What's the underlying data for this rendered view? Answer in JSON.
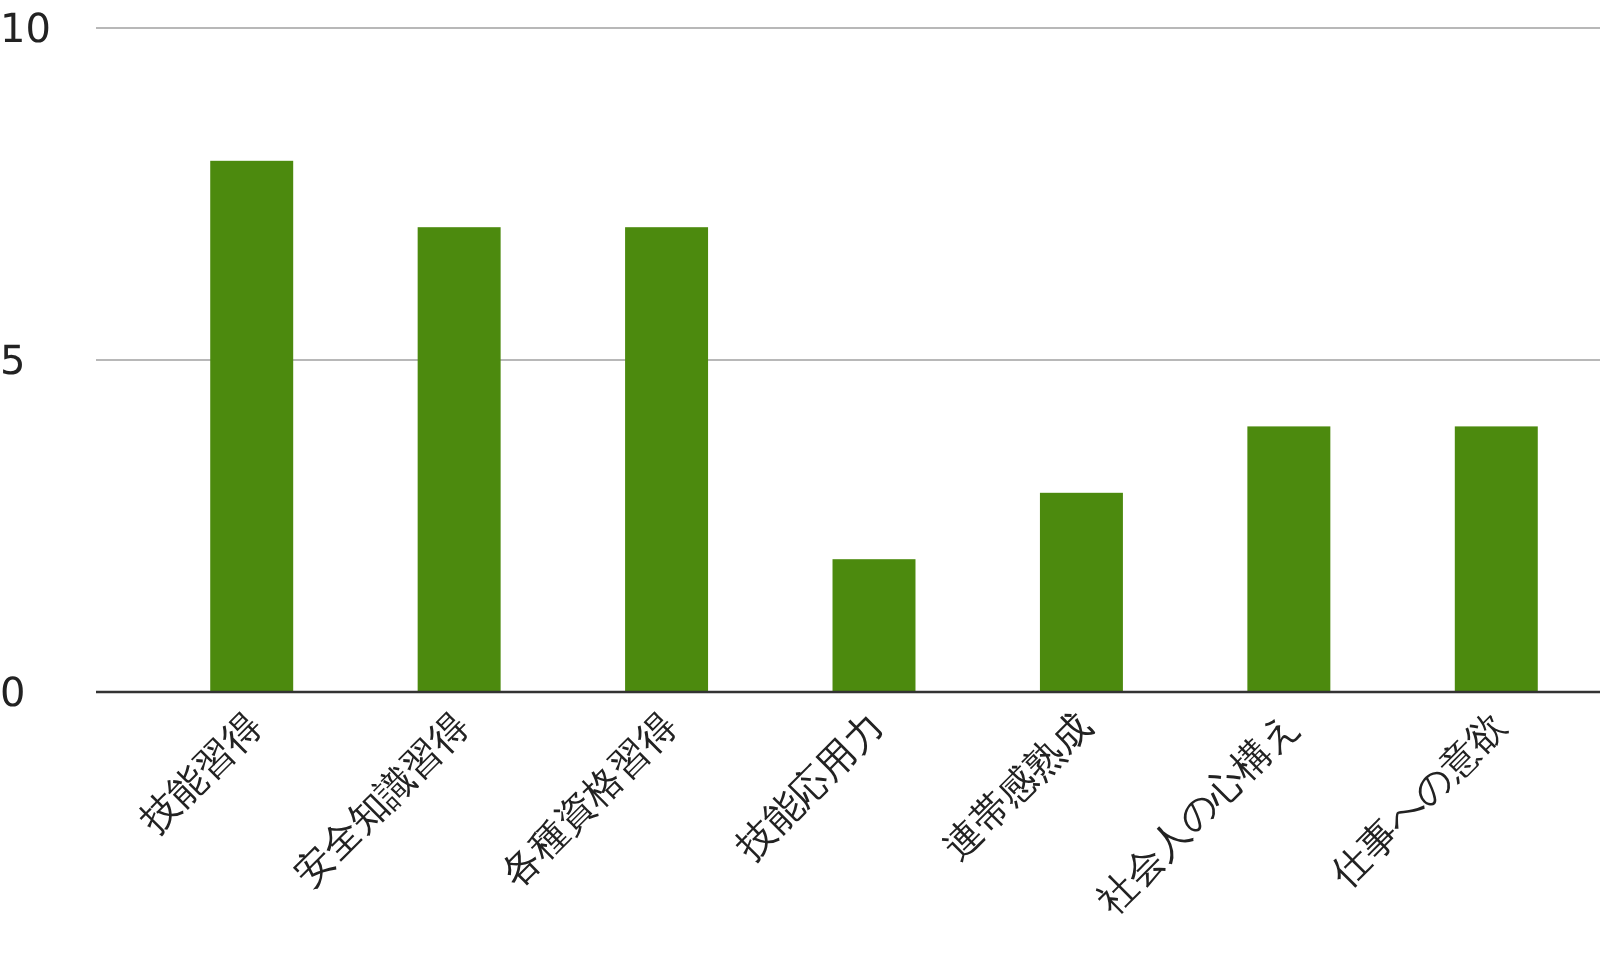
{
  "chart_data": {
    "type": "bar",
    "categories": [
      "技能習得",
      "安全知識習得",
      "各種資格習得",
      "技能応用力",
      "連帯感熟成",
      "社会人の心構え",
      "仕事への意欲"
    ],
    "values": [
      8,
      7,
      7,
      2,
      3,
      4,
      4
    ],
    "color": "#4c8a0e",
    "ylim": [
      0,
      10
    ],
    "yticks": [
      0,
      5,
      10
    ],
    "grid": "y"
  }
}
